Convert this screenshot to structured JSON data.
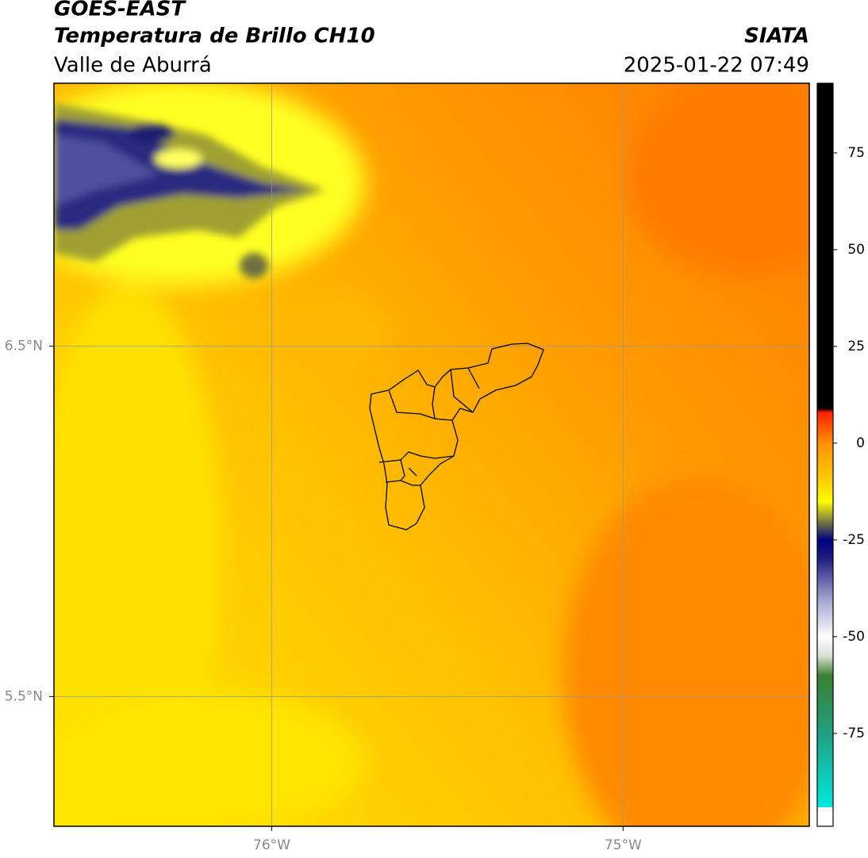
{
  "header": {
    "title": "GOES-EAST",
    "subtitle": "Temperatura de Brillo CH10",
    "region": "Valle de Aburrá",
    "source": "SIATA",
    "datetime": "2025-01-22 07:49"
  },
  "map": {
    "xlim": [
      -76.62,
      -74.47
    ],
    "ylim": [
      5.13,
      7.25
    ],
    "xticks": [
      {
        "value": -76,
        "label": "76°W"
      },
      {
        "value": -75,
        "label": "75°W"
      }
    ],
    "yticks": [
      {
        "value": 6.5,
        "label": "6.5°N"
      },
      {
        "value": 5.5,
        "label": "5.5°N"
      }
    ],
    "grid": true
  },
  "colorbar": {
    "clim": [
      -99,
      93
    ],
    "ticks": [
      75,
      50,
      25,
      0,
      -25,
      -50,
      -75
    ],
    "stops": [
      {
        "value": -99,
        "color": "#ffffff"
      },
      {
        "value": -94,
        "color": "#ffffff"
      },
      {
        "value": -94,
        "color": "#00e8e0"
      },
      {
        "value": -75,
        "color": "#20a080"
      },
      {
        "value": -60,
        "color": "#3a8030"
      },
      {
        "value": -55,
        "color": "#d8e0d0"
      },
      {
        "value": -50,
        "color": "#ffffff"
      },
      {
        "value": -40,
        "color": "#a0a0d0"
      },
      {
        "value": -30,
        "color": "#202080"
      },
      {
        "value": -25,
        "color": "#000080"
      },
      {
        "value": -20,
        "color": "#808040"
      },
      {
        "value": -15,
        "color": "#ffff00"
      },
      {
        "value": -10,
        "color": "#ffd000"
      },
      {
        "value": 0,
        "color": "#ff9000"
      },
      {
        "value": 8,
        "color": "#ff2000"
      },
      {
        "value": 9,
        "color": "#000000"
      },
      {
        "value": 93,
        "color": "#000000"
      }
    ]
  }
}
